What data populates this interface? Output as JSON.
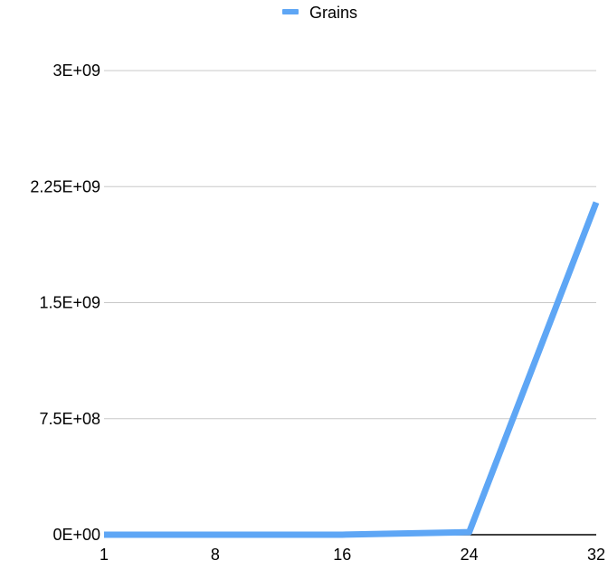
{
  "chart_data": {
    "type": "line",
    "title": "",
    "xlabel": "",
    "ylabel": "",
    "x": [
      1,
      8,
      16,
      24,
      32
    ],
    "x_tick_labels": [
      "1",
      "8",
      "16",
      "24",
      "32"
    ],
    "y_ticks": [
      0,
      750000000,
      1500000000,
      2250000000,
      3000000000
    ],
    "y_tick_labels": [
      "0E+00",
      "7.5E+08",
      "1.5E+09",
      "2.25E+09",
      "3E+09"
    ],
    "ylim": [
      0,
      3000000000
    ],
    "xlim": [
      1,
      32
    ],
    "grid": true,
    "legend_position": "top-center",
    "series": [
      {
        "name": "Grains",
        "color": "#5ea6f5",
        "x": [
          1,
          8,
          16,
          24,
          32
        ],
        "values": [
          1,
          255,
          65535,
          16777215,
          2147483648
        ]
      }
    ]
  }
}
